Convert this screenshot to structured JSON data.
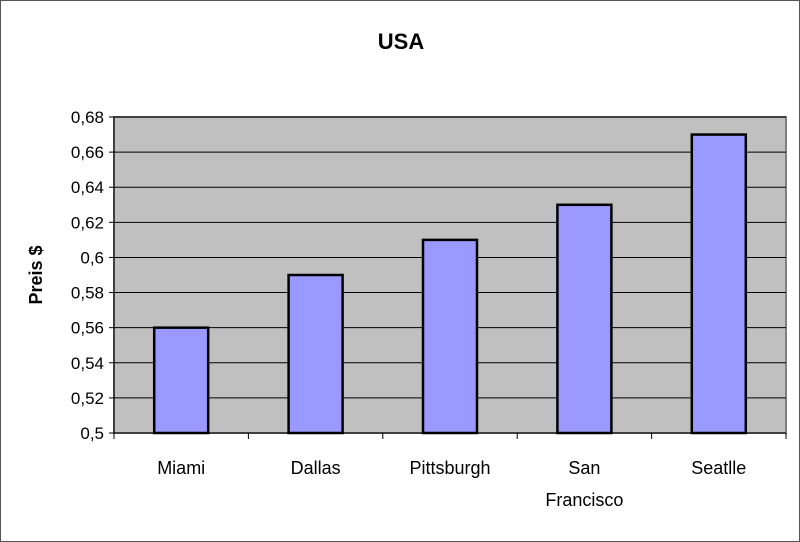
{
  "chart_data": {
    "type": "bar",
    "title": "USA",
    "xlabel": "",
    "ylabel": "Preis $",
    "categories": [
      [
        "Miami"
      ],
      [
        "Dallas"
      ],
      [
        "Pittsburgh"
      ],
      [
        "San",
        "Francisco"
      ],
      [
        "Seatlle"
      ]
    ],
    "values": [
      0.56,
      0.59,
      0.61,
      0.63,
      0.67
    ],
    "ylim": [
      0.5,
      0.68
    ],
    "yticks": [
      0.5,
      0.52,
      0.54,
      0.56,
      0.58,
      0.6,
      0.62,
      0.64,
      0.66,
      0.68
    ],
    "ytick_labels": [
      "0,5",
      "0,52",
      "0,54",
      "0,56",
      "0,58",
      "0,6",
      "0,62",
      "0,64",
      "0,66",
      "0,68"
    ],
    "grid": true,
    "legend": "none",
    "colors": {
      "bar": "#9999FF",
      "plot_background": "#C0C0C0",
      "bar_border": "#000000"
    }
  }
}
